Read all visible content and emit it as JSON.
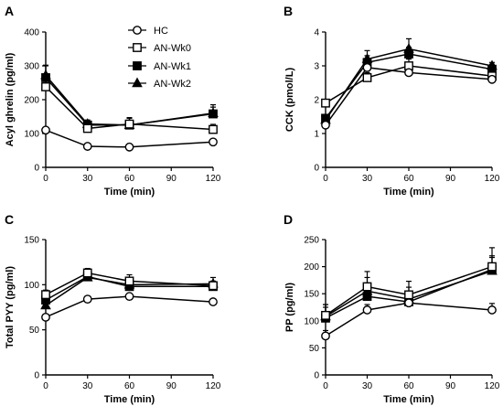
{
  "legend": [
    {
      "name": "HC",
      "marker": "circle-open"
    },
    {
      "name": "AN-Wk0",
      "marker": "square-open"
    },
    {
      "name": "AN-Wk1",
      "marker": "square-filled"
    },
    {
      "name": "AN-Wk2",
      "marker": "triangle-filled"
    }
  ],
  "chart_data": [
    {
      "type": "line",
      "panel": "A",
      "xlabel": "Time (min)",
      "ylabel": "Acyl ghrelin (pg/ml)",
      "x_ticks": [
        0,
        30,
        60,
        90,
        120
      ],
      "y_ticks": [
        0,
        100,
        200,
        300,
        400
      ],
      "xlim": [
        0,
        120
      ],
      "ylim": [
        0,
        400
      ],
      "x": [
        0,
        30,
        60,
        120
      ],
      "series": [
        {
          "name": "HC",
          "marker": "circle-open",
          "values": [
            110,
            62,
            60,
            75
          ],
          "err": [
            0,
            0,
            0,
            0
          ]
        },
        {
          "name": "AN-Wk0",
          "marker": "square-open",
          "values": [
            238,
            115,
            128,
            112
          ],
          "err": [
            30,
            15,
            18,
            15
          ]
        },
        {
          "name": "AN-Wk1",
          "marker": "square-filled",
          "values": [
            265,
            125,
            125,
            158
          ],
          "err": [
            35,
            12,
            22,
            20
          ]
        },
        {
          "name": "AN-Wk2",
          "marker": "triangle-filled",
          "values": [
            272,
            128,
            125,
            160
          ],
          "err": [
            30,
            12,
            20,
            25
          ]
        }
      ]
    },
    {
      "type": "line",
      "panel": "B",
      "xlabel": "Time (min)",
      "ylabel": "CCK (pmol/L)",
      "x_ticks": [
        0,
        30,
        60,
        90,
        120
      ],
      "y_ticks": [
        0,
        1,
        2,
        3,
        4
      ],
      "xlim": [
        0,
        120
      ],
      "ylim": [
        0,
        4
      ],
      "x": [
        0,
        30,
        60,
        120
      ],
      "series": [
        {
          "name": "HC",
          "marker": "circle-open",
          "values": [
            1.25,
            2.95,
            2.8,
            2.6
          ],
          "err": [
            0,
            0,
            0,
            0
          ]
        },
        {
          "name": "AN-Wk0",
          "marker": "square-open",
          "values": [
            1.9,
            2.65,
            3.0,
            2.7
          ],
          "err": [
            0.1,
            0.15,
            0.2,
            0.15
          ]
        },
        {
          "name": "AN-Wk1",
          "marker": "square-filled",
          "values": [
            1.45,
            3.1,
            3.35,
            2.9
          ],
          "err": [
            0.1,
            0.2,
            0.2,
            0.15
          ]
        },
        {
          "name": "AN-Wk2",
          "marker": "triangle-filled",
          "values": [
            1.4,
            3.2,
            3.5,
            3.0
          ],
          "err": [
            0.1,
            0.25,
            0.3,
            0.1
          ]
        }
      ]
    },
    {
      "type": "line",
      "panel": "C",
      "xlabel": "Time (min)",
      "ylabel": "Total PYY (pg/ml)",
      "x_ticks": [
        0,
        30,
        60,
        90,
        120
      ],
      "y_ticks": [
        0,
        50,
        100,
        150
      ],
      "xlim": [
        0,
        120
      ],
      "ylim": [
        0,
        150
      ],
      "x": [
        0,
        30,
        60,
        120
      ],
      "series": [
        {
          "name": "HC",
          "marker": "circle-open",
          "values": [
            64,
            84,
            87,
            81
          ],
          "err": [
            0,
            0,
            0,
            0
          ]
        },
        {
          "name": "AN-Wk0",
          "marker": "square-open",
          "values": [
            89,
            113,
            104,
            99
          ],
          "err": [
            5,
            5,
            7,
            4
          ]
        },
        {
          "name": "AN-Wk1",
          "marker": "square-filled",
          "values": [
            83,
            109,
            98,
            98
          ],
          "err": [
            5,
            5,
            7,
            6
          ]
        },
        {
          "name": "AN-Wk2",
          "marker": "triangle-filled",
          "values": [
            77,
            108,
            100,
            101
          ],
          "err": [
            5,
            7,
            7,
            7
          ]
        }
      ]
    },
    {
      "type": "line",
      "panel": "D",
      "xlabel": "Time (min)",
      "ylabel": "PP (pg/ml)",
      "x_ticks": [
        0,
        30,
        60,
        90,
        120
      ],
      "y_ticks": [
        0,
        50,
        100,
        150,
        200,
        250
      ],
      "xlim": [
        0,
        120
      ],
      "ylim": [
        0,
        250
      ],
      "x": [
        0,
        30,
        60,
        120
      ],
      "series": [
        {
          "name": "HC",
          "marker": "circle-open",
          "values": [
            72,
            120,
            133,
            120
          ],
          "err": [
            10,
            10,
            10,
            12
          ]
        },
        {
          "name": "AN-Wk0",
          "marker": "square-open",
          "values": [
            110,
            163,
            148,
            200
          ],
          "err": [
            20,
            28,
            25,
            35
          ]
        },
        {
          "name": "AN-Wk1",
          "marker": "square-filled",
          "values": [
            105,
            145,
            135,
            195
          ],
          "err": [
            20,
            20,
            20,
            25
          ]
        },
        {
          "name": "AN-Wk2",
          "marker": "triangle-filled",
          "values": [
            108,
            155,
            140,
            192
          ],
          "err": [
            22,
            25,
            22,
            25
          ]
        }
      ]
    }
  ]
}
